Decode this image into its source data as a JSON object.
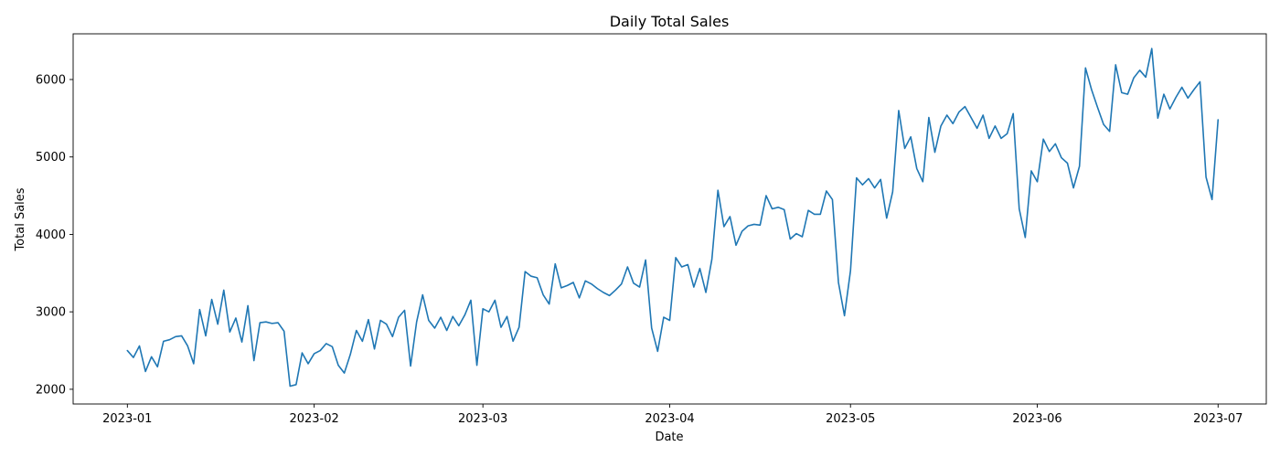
{
  "chart_data": {
    "type": "line",
    "title": "Daily Total Sales",
    "xlabel": "Date",
    "ylabel": "Total Sales",
    "x_start": "2023-01-01",
    "x_end": "2023-06-30",
    "xlim": [
      "2022-12-23",
      "2023-07-09"
    ],
    "ylim": [
      1810,
      6590
    ],
    "x_ticks": [
      "2023-01",
      "2023-02",
      "2023-03",
      "2023-04",
      "2023-05",
      "2023-06",
      "2023-07"
    ],
    "y_ticks": [
      2000,
      3000,
      4000,
      5000,
      6000
    ],
    "grid": false,
    "line_color": "#1f77b4",
    "series": [
      {
        "values": [
          2500,
          2410,
          2560,
          2230,
          2420,
          2290,
          2620,
          2640,
          2680,
          2690,
          2560,
          2330,
          3030,
          2690,
          3160,
          2840,
          3280,
          2740,
          2920,
          2610,
          3080,
          2370,
          2860,
          2870,
          2850,
          2860,
          2750,
          2040,
          2060,
          2470,
          2330,
          2460,
          2500,
          2590,
          2550,
          2310,
          2210,
          2450,
          2760,
          2620,
          2900,
          2520,
          2890,
          2840,
          2680,
          2930,
          3020,
          2300,
          2870,
          3220,
          2890,
          2790,
          2930,
          2760,
          2940,
          2820,
          2960,
          3150,
          2310,
          3040,
          3000,
          3150,
          2800,
          2940,
          2620,
          2800,
          3520,
          3460,
          3440,
          3220,
          3100,
          3620,
          3310,
          3340,
          3380,
          3180,
          3400,
          3360,
          3300,
          3250,
          3210,
          3280,
          3360,
          3580,
          3370,
          3320,
          3670,
          2790,
          2490,
          2930,
          2890,
          3700,
          3580,
          3610,
          3320,
          3560,
          3250,
          3680,
          4570,
          4100,
          4230,
          3860,
          4040,
          4110,
          4130,
          4120,
          4500,
          4330,
          4350,
          4320,
          3940,
          4010,
          3970,
          4310,
          4260,
          4260,
          4560,
          4450,
          3380,
          2950,
          3530,
          4730,
          4640,
          4720,
          4600,
          4710,
          4210,
          4550,
          5600,
          5110,
          5260,
          4850,
          4680,
          5510,
          5060,
          5400,
          5540,
          5430,
          5580,
          5650,
          5510,
          5370,
          5540,
          5240,
          5400,
          5240,
          5300,
          5560,
          4330,
          3960,
          4820,
          4680,
          5230,
          5070,
          5170,
          4990,
          4920,
          4600,
          4880,
          6150,
          5870,
          5640,
          5420,
          5330,
          6190,
          5830,
          5810,
          6020,
          6120,
          6030,
          6400,
          5500,
          5810,
          5620,
          5770,
          5900,
          5760,
          5870,
          5970,
          4740,
          4450,
          5480
        ]
      }
    ]
  }
}
